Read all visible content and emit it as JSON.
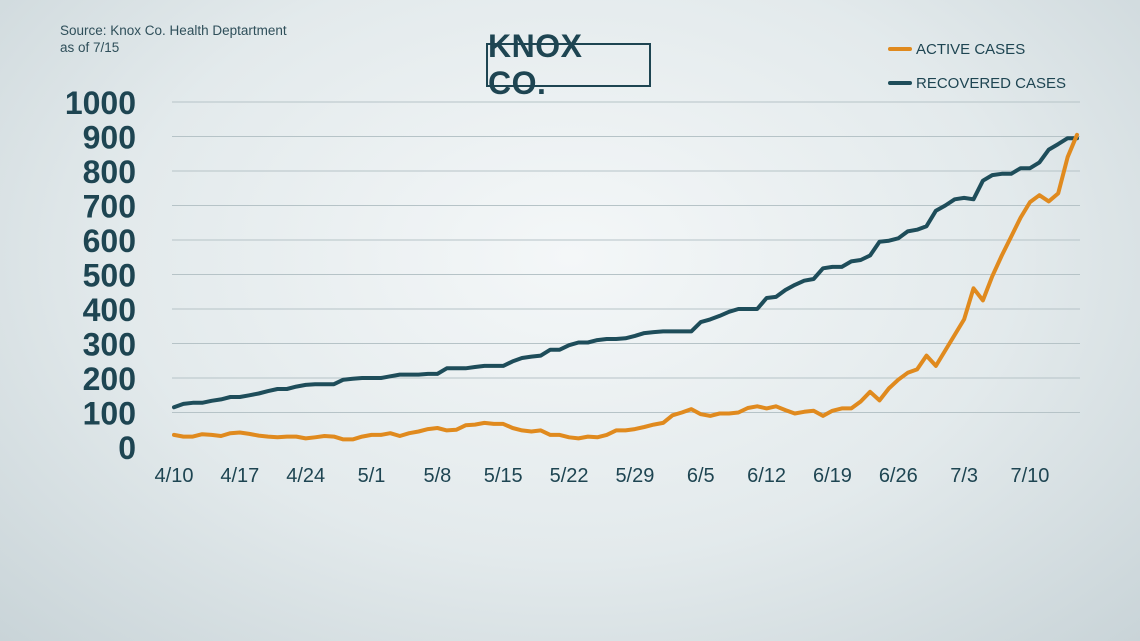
{
  "source": {
    "line1": "Source: Knox Co. Health Deptartment",
    "line2": "as of 7/15"
  },
  "chart_data": {
    "type": "line",
    "title": "KNOX CO.",
    "xlabel": "",
    "ylabel": "",
    "ylim": [
      0,
      1000
    ],
    "yticks": [
      0,
      100,
      200,
      300,
      400,
      500,
      600,
      700,
      800,
      900,
      1000
    ],
    "x_tick_labels": [
      "4/10",
      "4/17",
      "4/24",
      "5/1",
      "5/8",
      "5/15",
      "5/22",
      "5/29",
      "6/5",
      "6/12",
      "6/19",
      "6/26",
      "7/3",
      "7/10"
    ],
    "x_start": "4/10",
    "x_end": "7/15",
    "grid": true,
    "legend_position": "top-right",
    "series": [
      {
        "name": "ACTIVE CASES",
        "color": "#e08a1e",
        "values": [
          35,
          30,
          30,
          37,
          35,
          32,
          40,
          42,
          38,
          33,
          30,
          28,
          30,
          30,
          25,
          28,
          32,
          30,
          22,
          22,
          30,
          35,
          35,
          40,
          32,
          40,
          45,
          52,
          55,
          48,
          50,
          63,
          65,
          70,
          67,
          67,
          55,
          48,
          45,
          48,
          35,
          35,
          28,
          25,
          30,
          28,
          35,
          48,
          48,
          52,
          58,
          65,
          70,
          92,
          100,
          110,
          95,
          90,
          97,
          97,
          100,
          113,
          118,
          112,
          118,
          107,
          97,
          102,
          105,
          90,
          105,
          112,
          112,
          132,
          160,
          135,
          170,
          195,
          215,
          225,
          265,
          235,
          280,
          325,
          370,
          460,
          425,
          495,
          555,
          610,
          665,
          710,
          730,
          712,
          735,
          840,
          905
        ]
      },
      {
        "name": "RECOVERED CASES",
        "color": "#1e4d5a",
        "values": [
          115,
          125,
          128,
          128,
          134,
          138,
          145,
          145,
          150,
          155,
          162,
          168,
          168,
          175,
          180,
          182,
          182,
          182,
          195,
          198,
          200,
          200,
          200,
          205,
          210,
          210,
          210,
          212,
          212,
          228,
          228,
          228,
          232,
          235,
          235,
          235,
          248,
          258,
          262,
          265,
          282,
          282,
          295,
          303,
          303,
          310,
          313,
          313,
          315,
          322,
          330,
          333,
          335,
          335,
          335,
          335,
          362,
          370,
          380,
          392,
          400,
          400,
          400,
          432,
          435,
          455,
          470,
          482,
          487,
          518,
          522,
          522,
          538,
          542,
          555,
          595,
          598,
          605,
          625,
          630,
          640,
          685,
          700,
          718,
          722,
          718,
          772,
          788,
          792,
          792,
          808,
          808,
          825,
          862,
          878,
          895,
          895
        ]
      }
    ]
  }
}
